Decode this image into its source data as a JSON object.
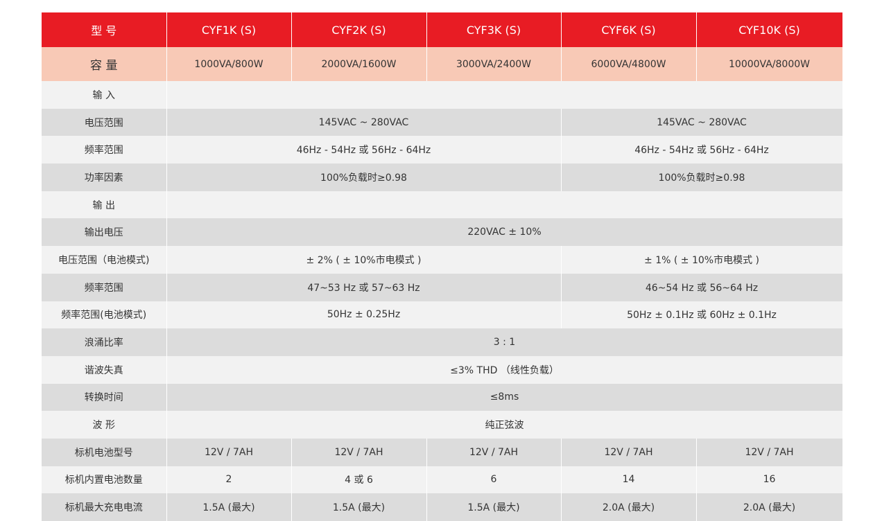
{
  "colors": {
    "header": "#e81c24",
    "capacity": "#f8c9b6",
    "row_light": "#f2f2f2",
    "row_dark": "#dcdcdc"
  },
  "header": {
    "label": "型 号",
    "models": [
      "CYF1K (S)",
      "CYF2K (S)",
      "CYF3K (S)",
      "CYF6K (S)",
      "CYF10K (S)"
    ]
  },
  "capacity": {
    "label": "容 量",
    "values": [
      "1000VA/800W",
      "2000VA/1600W",
      "3000VA/2400W",
      "6000VA/4800W",
      "10000VA/8000W"
    ]
  },
  "rows": [
    {
      "label": "输 入",
      "cells": [
        {
          "text": "",
          "span": 5
        }
      ]
    },
    {
      "label": "电压范围",
      "cells": [
        {
          "text": "145VAC ~ 280VAC",
          "span": 3
        },
        {
          "text": "145VAC ~ 280VAC",
          "span": 2
        }
      ]
    },
    {
      "label": "频率范围",
      "cells": [
        {
          "text": "46Hz - 54Hz  或  56Hz - 64Hz",
          "span": 3
        },
        {
          "text": "46Hz - 54Hz  或  56Hz - 64Hz",
          "span": 2
        }
      ]
    },
    {
      "label": "功率因素",
      "cells": [
        {
          "text": "100%负载时≥0.98",
          "span": 3
        },
        {
          "text": "100%负载时≥0.98",
          "span": 2
        }
      ]
    },
    {
      "label": "输 出",
      "cells": [
        {
          "text": "",
          "span": 5
        }
      ]
    },
    {
      "label": "输出电压",
      "cells": [
        {
          "text": "220VAC ± 10%",
          "span": 5
        }
      ]
    },
    {
      "label": "电压范围（电池模式)",
      "cells": [
        {
          "text": "± 2% ( ± 10%市电模式 )",
          "span": 3
        },
        {
          "text": "± 1% ( ± 10%市电模式 )",
          "span": 2
        }
      ]
    },
    {
      "label": "频率范围",
      "cells": [
        {
          "text": "47~53 Hz 或 57~63 Hz",
          "span": 3
        },
        {
          "text": "46~54 Hz 或 56~64 Hz",
          "span": 2
        }
      ]
    },
    {
      "label": "频率范围(电池模式)",
      "cells": [
        {
          "text": "50Hz ± 0.25Hz",
          "span": 3
        },
        {
          "text": "50Hz ± 0.1Hz 或 60Hz ± 0.1Hz",
          "span": 2
        }
      ]
    },
    {
      "label": "浪涌比率",
      "cells": [
        {
          "text": "3 : 1",
          "span": 5
        }
      ]
    },
    {
      "label": "谐波失真",
      "cells": [
        {
          "text": "≤3% THD （线性负载）",
          "span": 5
        }
      ]
    },
    {
      "label": "转换时间",
      "cells": [
        {
          "text": "≤8ms",
          "span": 5
        }
      ]
    },
    {
      "label": "波 形",
      "cells": [
        {
          "text": "纯正弦波",
          "span": 5
        }
      ]
    },
    {
      "label": "标机电池型号",
      "cells": [
        {
          "text": "12V / 7AH",
          "span": 1
        },
        {
          "text": "12V / 7AH",
          "span": 1
        },
        {
          "text": "12V / 7AH",
          "span": 1
        },
        {
          "text": "12V / 7AH",
          "span": 1
        },
        {
          "text": "12V / 7AH",
          "span": 1
        }
      ]
    },
    {
      "label": "标机内置电池数量",
      "cells": [
        {
          "text": "2",
          "span": 1
        },
        {
          "text": "4 或 6",
          "span": 1
        },
        {
          "text": "6",
          "span": 1
        },
        {
          "text": "14",
          "span": 1
        },
        {
          "text": "16",
          "span": 1
        }
      ]
    },
    {
      "label": "标机最大充电电流",
      "cells": [
        {
          "text": "1.5A (最大)",
          "span": 1
        },
        {
          "text": "1.5A (最大)",
          "span": 1
        },
        {
          "text": "1.5A (最大)",
          "span": 1
        },
        {
          "text": "2.0A (最大)",
          "span": 1
        },
        {
          "text": "2.0A (最大)",
          "span": 1
        }
      ]
    }
  ]
}
